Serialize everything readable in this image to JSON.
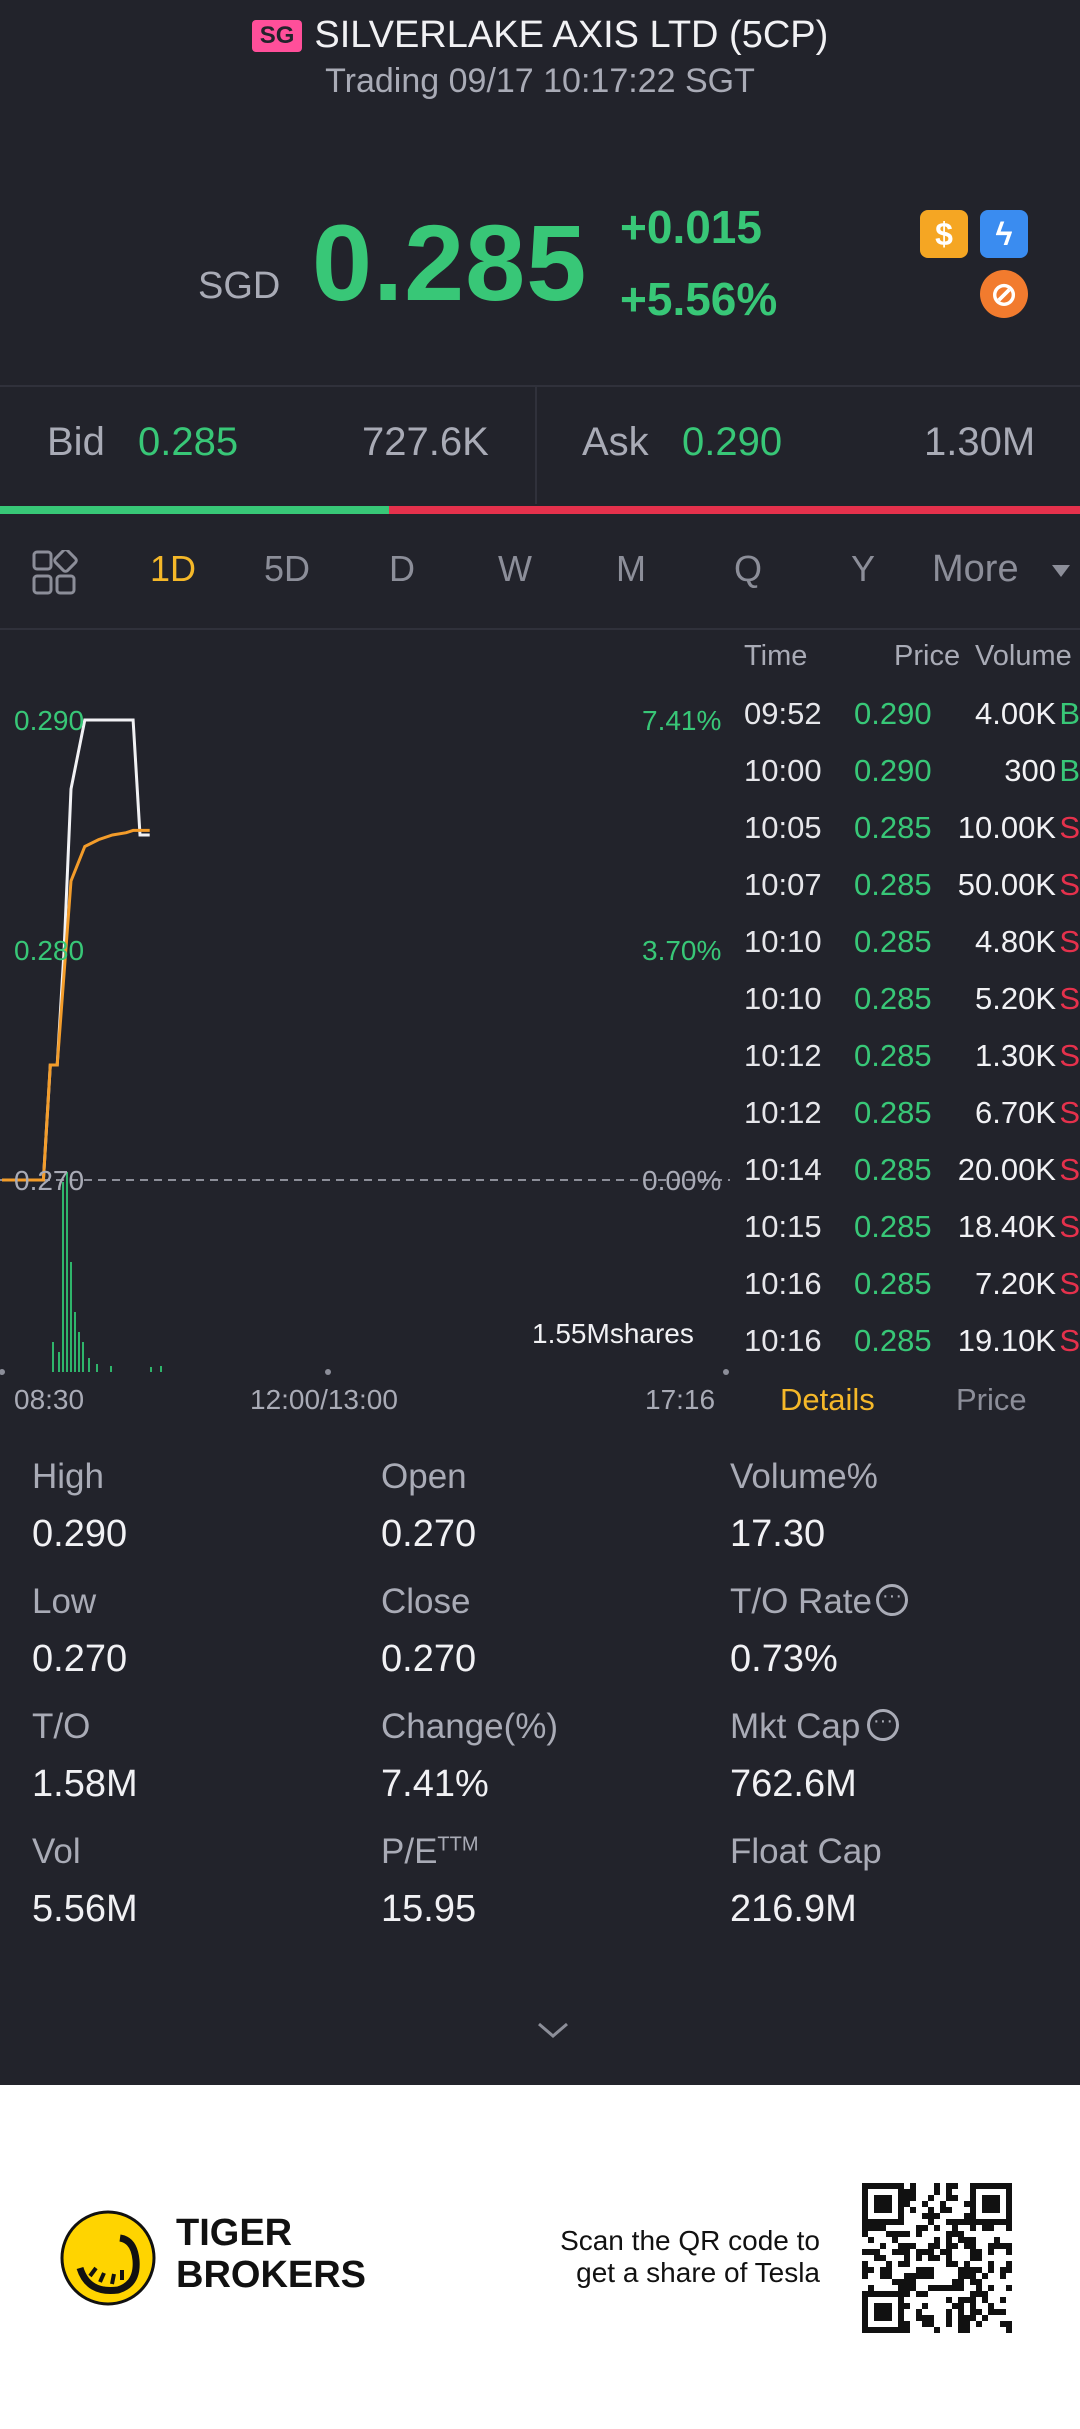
{
  "header": {
    "market_badge": "SG",
    "title": "SILVERLAKE AXIS LTD (5CP)",
    "status": "Trading 09/17 10:17:22 SGT",
    "currency": "SGD",
    "price": "0.285",
    "change": "+0.015",
    "change_pct": "+5.56%",
    "icons": [
      {
        "name": "dollar-icon",
        "glyph": "$",
        "color": "#f5a623"
      },
      {
        "name": "flash-icon",
        "glyph": "ϟ",
        "color": "#3a8cf0"
      },
      {
        "name": "margin-icon",
        "glyph": "⊘",
        "color": "#f27b2e"
      }
    ]
  },
  "bid_ask": {
    "bid_label": "Bid",
    "bid_price": "0.285",
    "bid_size": "727.6K",
    "ask_label": "Ask",
    "ask_price": "0.290",
    "ask_size": "1.30M",
    "bid_share": 0.36
  },
  "tabs": {
    "items": [
      "1D",
      "5D",
      "D",
      "W",
      "M",
      "Q",
      "Y"
    ],
    "more": "More",
    "active_index": 0
  },
  "chart": {
    "y_labels": [
      "0.290",
      "0.280",
      "0.270"
    ],
    "pct_labels": [
      "7.41%",
      "3.70%",
      "0.00%"
    ],
    "x_labels": [
      "08:30",
      "12:00/13:00",
      "17:16"
    ],
    "volume_label": "1.55Mshares"
  },
  "chart_data": {
    "type": "line",
    "ylim": [
      0.27,
      0.29
    ],
    "series": [
      {
        "x": [
          "08:30",
          "08:45",
          "09:00",
          "09:05",
          "09:10",
          "09:15",
          "09:20",
          "09:30",
          "09:40",
          "09:50",
          "10:00",
          "10:05",
          "10:10",
          "10:17"
        ],
        "values": [
          0.27,
          0.27,
          0.27,
          0.275,
          0.275,
          0.28,
          0.287,
          0.29,
          0.29,
          0.29,
          0.29,
          0.29,
          0.285,
          0.285
        ]
      },
      {
        "x": [
          "08:30",
          "08:45",
          "09:00",
          "09:05",
          "09:10",
          "09:15",
          "09:20",
          "09:30",
          "09:40",
          "09:50",
          "10:00",
          "10:05",
          "10:10",
          "10:17"
        ],
        "values": [
          0.27,
          0.27,
          0.27,
          0.275,
          0.275,
          0.279,
          0.283,
          0.2845,
          0.2848,
          0.285,
          0.2851,
          0.2852,
          0.2852,
          0.2852
        ]
      }
    ]
  },
  "trades": {
    "headers": {
      "time": "Time",
      "price": "Price",
      "volume": "Volume"
    },
    "rows": [
      {
        "time": "09:52",
        "price": "0.290",
        "volume": "4.00K",
        "side": "B"
      },
      {
        "time": "10:00",
        "price": "0.290",
        "volume": "300",
        "side": "B"
      },
      {
        "time": "10:05",
        "price": "0.285",
        "volume": "10.00K",
        "side": "S"
      },
      {
        "time": "10:07",
        "price": "0.285",
        "volume": "50.00K",
        "side": "S"
      },
      {
        "time": "10:10",
        "price": "0.285",
        "volume": "4.80K",
        "side": "S"
      },
      {
        "time": "10:10",
        "price": "0.285",
        "volume": "5.20K",
        "side": "S"
      },
      {
        "time": "10:12",
        "price": "0.285",
        "volume": "1.30K",
        "side": "S"
      },
      {
        "time": "10:12",
        "price": "0.285",
        "volume": "6.70K",
        "side": "S"
      },
      {
        "time": "10:14",
        "price": "0.285",
        "volume": "20.00K",
        "side": "S"
      },
      {
        "time": "10:15",
        "price": "0.285",
        "volume": "18.40K",
        "side": "S"
      },
      {
        "time": "10:16",
        "price": "0.285",
        "volume": "7.20K",
        "side": "S"
      },
      {
        "time": "10:16",
        "price": "0.285",
        "volume": "19.10K",
        "side": "S"
      }
    ],
    "tab_details": "Details",
    "tab_price": "Price"
  },
  "stats": {
    "high_label": "High",
    "high": "0.290",
    "open_label": "Open",
    "open": "0.270",
    "volpct_label": "Volume%",
    "volpct": "17.30",
    "low_label": "Low",
    "low": "0.270",
    "close_label": "Close",
    "close": "0.270",
    "torate_label": "T/O Rate",
    "torate": "0.73%",
    "to_label": "T/O",
    "to": "1.58M",
    "changepct_label": "Change(%)",
    "changepct": "7.41%",
    "mktcap_label": "Mkt Cap",
    "mktcap": "762.6M",
    "vol_label": "Vol",
    "vol": "5.56M",
    "pe_label": "P/E",
    "pe_sup": "TTM",
    "pe": "15.95",
    "floatcap_label": "Float Cap",
    "floatcap": "216.9M"
  },
  "footer": {
    "brand_line1": "TIGER",
    "brand_line2": "BROKERS",
    "promo_line1": "Scan the QR code to",
    "promo_line2": "get a share of Tesla"
  }
}
